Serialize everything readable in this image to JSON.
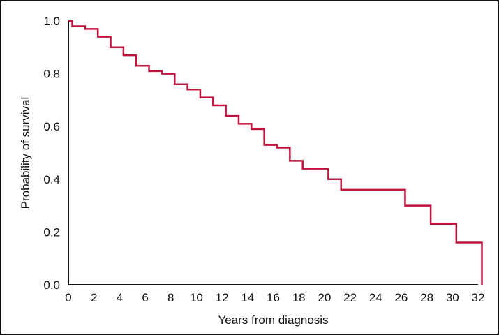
{
  "chart_data": {
    "type": "line",
    "step": true,
    "xlabel": "Years from diagnosis",
    "ylabel": "Probability of survival",
    "xlim": [
      0,
      32
    ],
    "ylim": [
      0,
      1.0
    ],
    "xticks": [
      "0",
      "2",
      "4",
      "6",
      "8",
      "10",
      "12",
      "14",
      "16",
      "18",
      "20",
      "22",
      "24",
      "26",
      "28",
      "30",
      "32"
    ],
    "yticks": [
      "0.0",
      "0.2",
      "0.4",
      "0.6",
      "0.8",
      "1.0"
    ],
    "grid": false,
    "line_color": "#c0143c",
    "series": [
      {
        "x": [
          0,
          0.3,
          1.3,
          2.3,
          3.3,
          4.3,
          5.3,
          6.3,
          7.3,
          8.3,
          9.3,
          10.3,
          11.3,
          12.3,
          13.3,
          14.3,
          15.3,
          16.3,
          17.3,
          18.3,
          20.3,
          21.3,
          26.3,
          28.3,
          30.3,
          32.3,
          32.3
        ],
        "y": [
          1.0,
          0.98,
          0.97,
          0.94,
          0.9,
          0.87,
          0.83,
          0.81,
          0.8,
          0.76,
          0.74,
          0.71,
          0.68,
          0.64,
          0.61,
          0.59,
          0.53,
          0.52,
          0.47,
          0.44,
          0.4,
          0.36,
          0.3,
          0.23,
          0.16,
          0.16,
          0.0
        ]
      }
    ]
  }
}
